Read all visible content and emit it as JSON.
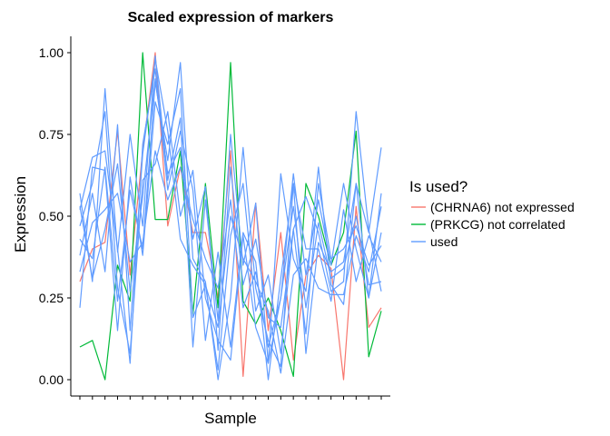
{
  "chart_data": {
    "type": "line",
    "title": "Scaled expression of markers",
    "xlabel": "Sample",
    "ylabel": "Expression",
    "ylim": [
      -0.05,
      1.05
    ],
    "yticks": [
      "0.00",
      "0.25",
      "0.50",
      "0.75",
      "1.00"
    ],
    "x_count": 25,
    "grid": false,
    "legend": {
      "title": "Is used?",
      "placement": "right",
      "entries": [
        {
          "label": "(CHRNA6) not expressed",
          "color": "#F8766D"
        },
        {
          "label": "(PRKCG) not correlated",
          "color": "#00BA38"
        },
        {
          "label": "used",
          "color": "#619CFF"
        }
      ]
    },
    "series": [
      {
        "group": "(CHRNA6) not expressed",
        "color": "#F8766D",
        "values": [
          0.3,
          0.4,
          0.42,
          0.76,
          0.32,
          0.7,
          1.0,
          0.47,
          0.65,
          0.45,
          0.45,
          0.25,
          0.7,
          0.01,
          0.54,
          0.15,
          0.45,
          0.06,
          0.32,
          0.38,
          0.34,
          0.0,
          0.53,
          0.16,
          0.22
        ]
      },
      {
        "group": "(PRKCG) not correlated",
        "color": "#00BA38",
        "values": [
          0.1,
          0.12,
          0.0,
          0.35,
          0.24,
          1.0,
          0.49,
          0.49,
          0.7,
          0.2,
          0.6,
          0.22,
          0.97,
          0.24,
          0.17,
          0.25,
          0.15,
          0.01,
          0.6,
          0.5,
          0.35,
          0.45,
          0.76,
          0.07,
          0.21
        ]
      },
      {
        "group": "used",
        "color": "#619CFF",
        "values": [
          0.57,
          0.3,
          0.89,
          0.39,
          0.75,
          0.47,
          0.99,
          0.61,
          0.8,
          0.1,
          0.55,
          0.18,
          0.75,
          0.35,
          0.54,
          0.05,
          0.25,
          0.63,
          0.32,
          0.55,
          0.35,
          0.6,
          0.4,
          0.25,
          0.57
        ]
      },
      {
        "group": "used",
        "color": "#619CFF",
        "values": [
          0.22,
          0.65,
          0.64,
          0.15,
          0.62,
          0.38,
          0.85,
          0.72,
          0.89,
          0.19,
          0.29,
          0.03,
          0.44,
          0.6,
          0.21,
          0.32,
          0.08,
          0.46,
          0.56,
          0.45,
          0.27,
          0.3,
          0.82,
          0.46,
          0.27
        ]
      },
      {
        "group": "used",
        "color": "#619CFF",
        "values": [
          0.52,
          0.68,
          0.7,
          0.4,
          0.05,
          0.72,
          0.95,
          0.58,
          0.76,
          0.58,
          0.12,
          0.39,
          0.1,
          0.45,
          0.36,
          0.0,
          0.31,
          0.6,
          0.08,
          0.42,
          0.33,
          0.36,
          0.6,
          0.25,
          0.45
        ]
      },
      {
        "group": "used",
        "color": "#619CFF",
        "values": [
          0.43,
          0.37,
          0.65,
          0.24,
          0.58,
          0.4,
          0.91,
          0.67,
          0.97,
          0.37,
          0.3,
          0.0,
          0.25,
          0.71,
          0.28,
          0.12,
          0.04,
          0.6,
          0.4,
          0.4,
          0.24,
          0.52,
          0.3,
          0.44,
          0.36
        ]
      },
      {
        "group": "used",
        "color": "#619CFF",
        "values": [
          0.47,
          0.6,
          0.82,
          0.28,
          0.08,
          0.61,
          0.66,
          0.82,
          0.5,
          0.64,
          0.25,
          0.12,
          0.06,
          0.44,
          0.16,
          0.05,
          0.63,
          0.37,
          0.27,
          0.65,
          0.29,
          0.23,
          0.6,
          0.45,
          0.71
        ]
      },
      {
        "group": "used",
        "color": "#619CFF",
        "values": [
          0.38,
          0.57,
          0.33,
          0.78,
          0.15,
          0.69,
          0.98,
          0.76,
          0.43,
          0.35,
          0.29,
          0.16,
          0.5,
          0.37,
          0.3,
          0.21,
          0.02,
          0.32,
          0.37,
          0.28,
          0.26,
          0.26,
          0.44,
          0.33,
          0.53
        ]
      },
      {
        "group": "used",
        "color": "#619CFF",
        "values": [
          0.53,
          0.31,
          0.46,
          0.66,
          0.27,
          0.56,
          0.92,
          0.63,
          0.71,
          0.43,
          0.59,
          0.09,
          0.65,
          0.29,
          0.43,
          0.19,
          0.16,
          0.46,
          0.14,
          0.6,
          0.37,
          0.4,
          0.47,
          0.35,
          0.41
        ]
      },
      {
        "group": "used",
        "color": "#619CFF",
        "values": [
          0.33,
          0.48,
          0.52,
          0.57,
          0.36,
          0.42,
          0.7,
          0.55,
          0.65,
          0.49,
          0.37,
          0.28,
          0.55,
          0.22,
          0.33,
          0.1,
          0.25,
          0.53,
          0.22,
          0.48,
          0.31,
          0.34,
          0.5,
          0.29,
          0.3
        ]
      }
    ]
  }
}
